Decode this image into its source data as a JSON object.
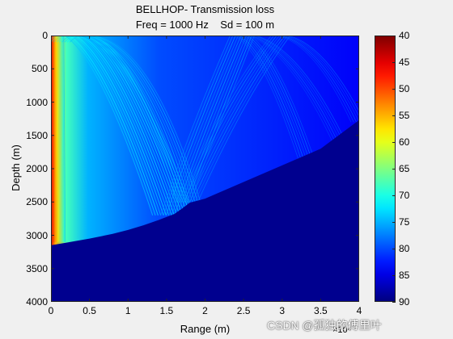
{
  "chart_data": {
    "type": "heatmap",
    "title_line1": "BELLHOP- Transmission loss",
    "title_line2": "Freq = 1000 Hz    Sd = 100 m",
    "xlabel": "Range (m)",
    "ylabel": "Depth (m)",
    "x_exponent_label": "×10⁴",
    "x_ticks": [
      "0",
      "0.5",
      "1",
      "1.5",
      "2",
      "2.5",
      "3",
      "3.5",
      "4"
    ],
    "x_tick_values": [
      0,
      0.5,
      1,
      1.5,
      2,
      2.5,
      3,
      3.5,
      4
    ],
    "xlim": [
      0,
      4
    ],
    "y_ticks": [
      "0",
      "500",
      "1000",
      "1500",
      "2000",
      "2500",
      "3000",
      "3500",
      "4000"
    ],
    "y_tick_values": [
      0,
      500,
      1000,
      1500,
      2000,
      2500,
      3000,
      3500,
      4000
    ],
    "ylim": [
      0,
      4000
    ],
    "y_reversed": true,
    "colorbar_ticks": [
      "40",
      "45",
      "50",
      "55",
      "60",
      "65",
      "70",
      "75",
      "80",
      "85",
      "90"
    ],
    "colorbar_values": [
      40,
      45,
      50,
      55,
      60,
      65,
      70,
      75,
      80,
      85,
      90
    ],
    "colorbar_range": [
      40,
      90
    ],
    "colormap": "jet",
    "colormap_reversed": true,
    "seabed_profile": {
      "range_x1e4": [
        0,
        0.2,
        0.5,
        0.8,
        1.0,
        1.2,
        1.4,
        1.6,
        1.7,
        1.8,
        2.0,
        2.5,
        3.0,
        3.5,
        4.0
      ],
      "depth_m": [
        3150,
        3110,
        3050,
        2980,
        2920,
        2850,
        2770,
        2680,
        2600,
        2510,
        2450,
        2200,
        1950,
        1700,
        1270
      ]
    },
    "source_depth_m": 100,
    "frequency_hz": 1000
  },
  "watermark": "CSDN @孤独的傅里叶",
  "colors": {
    "figure_bg": "#f0f0f0",
    "loss_max": "#00008f",
    "loss_min": "#800000"
  }
}
